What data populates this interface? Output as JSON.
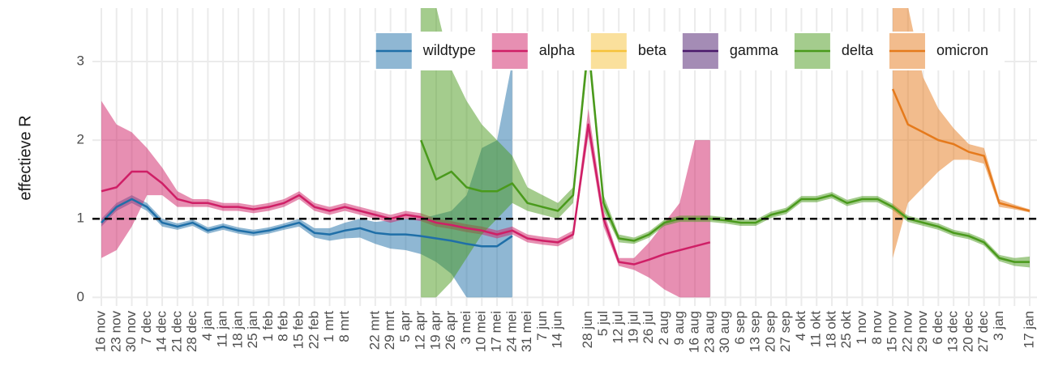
{
  "chart_data": {
    "type": "line-band",
    "y_label": "effectieve R",
    "categories": [
      "16 nov",
      "23 nov",
      "30 nov",
      "7 dec",
      "14 dec",
      "21 dec",
      "28 dec",
      "4 jan",
      "11 jan",
      "18 jan",
      "25 jan",
      "1 feb",
      "8 feb",
      "15 feb",
      "22 feb",
      "1 mrt",
      "8 mrt",
      null,
      "22 mrt",
      "29 mrt",
      "5 apr",
      "12 apr",
      "19 apr",
      "26 apr",
      "3 mei",
      "10 mei",
      "17 mei",
      "24 mei",
      "31 mei",
      "7 jun",
      "14 jun",
      null,
      "28 jun",
      "5 jul",
      "12 jul",
      "19 jul",
      "26 jul",
      "2 aug",
      "9 aug",
      "16 aug",
      "23 aug",
      "30 aug",
      "6 sep",
      "13 sep",
      "20 sep",
      "27 sep",
      "4 okt",
      "11 okt",
      "18 okt",
      "25 okt",
      "1 nov",
      "8 nov",
      "15 nov",
      "22 nov",
      "29 nov",
      "6 dec",
      "13 dec",
      "20 dec",
      "27 dec",
      "3 jan",
      null,
      "17 jan"
    ],
    "ylim": [
      -0.11,
      3.68
    ],
    "yticks": [
      0,
      1,
      2,
      3
    ],
    "grid": true,
    "reference_line": 1,
    "legend": "top-right",
    "series": [
      {
        "name": "wildtype",
        "color": "#1f6fa8",
        "values": [
          0.95,
          1.15,
          1.25,
          1.15,
          0.95,
          0.9,
          0.95,
          0.85,
          0.9,
          0.85,
          0.82,
          0.85,
          0.9,
          0.95,
          0.82,
          0.8,
          0.85,
          0.88,
          0.82,
          0.8,
          0.8,
          0.78,
          0.75,
          0.72,
          0.68,
          0.65,
          0.65,
          0.78,
          null,
          null,
          null,
          null,
          null,
          null,
          null,
          null,
          null,
          null,
          null,
          null,
          null,
          null,
          null,
          null,
          null,
          null,
          null,
          null,
          null,
          null,
          null,
          null,
          null,
          null,
          null,
          null,
          null,
          null,
          null,
          null,
          null,
          null
        ],
        "lower": [
          0.9,
          1.1,
          1.2,
          1.1,
          0.9,
          0.86,
          0.91,
          0.81,
          0.86,
          0.81,
          0.78,
          0.81,
          0.86,
          0.9,
          0.76,
          0.72,
          0.75,
          0.76,
          0.68,
          0.62,
          0.6,
          0.55,
          0.45,
          0.3,
          0,
          0,
          0,
          0,
          null,
          null,
          null,
          null,
          null,
          null,
          null,
          null,
          null,
          null,
          null,
          null,
          null,
          null,
          null,
          null,
          null,
          null,
          null,
          null,
          null,
          null,
          null,
          null,
          null,
          null,
          null,
          null,
          null,
          null,
          null,
          null,
          null,
          null
        ],
        "upper": [
          1.0,
          1.2,
          1.3,
          1.2,
          1.0,
          0.94,
          0.99,
          0.89,
          0.94,
          0.89,
          0.86,
          0.89,
          0.94,
          1.0,
          0.88,
          0.88,
          0.95,
          1.0,
          0.96,
          0.98,
          1.0,
          1.0,
          1.05,
          1.1,
          1.3,
          1.9,
          2.0,
          3.0,
          null,
          null,
          null,
          null,
          null,
          null,
          null,
          null,
          null,
          null,
          null,
          null,
          null,
          null,
          null,
          null,
          null,
          null,
          null,
          null,
          null,
          null,
          null,
          null,
          null,
          null,
          null,
          null,
          null,
          null,
          null,
          null,
          null,
          null
        ]
      },
      {
        "name": "alpha",
        "color": "#cf1f66",
        "values": [
          1.35,
          1.4,
          1.6,
          1.6,
          1.45,
          1.25,
          1.2,
          1.2,
          1.15,
          1.15,
          1.12,
          1.15,
          1.2,
          1.3,
          1.15,
          1.1,
          1.15,
          1.1,
          1.05,
          1.0,
          1.05,
          1.02,
          0.95,
          0.92,
          0.88,
          0.85,
          0.8,
          0.85,
          0.75,
          0.72,
          0.7,
          0.8,
          2.2,
          1.0,
          0.45,
          0.42,
          0.48,
          0.55,
          0.6,
          0.65,
          0.7,
          null,
          null,
          null,
          null,
          null,
          null,
          null,
          null,
          null,
          null,
          null,
          null,
          null,
          null,
          null,
          null,
          null,
          null,
          null,
          null,
          null
        ],
        "lower": [
          0.5,
          0.6,
          0.9,
          1.3,
          1.3,
          1.15,
          1.15,
          1.15,
          1.1,
          1.1,
          1.07,
          1.1,
          1.15,
          1.25,
          1.1,
          1.05,
          1.1,
          1.05,
          1.0,
          0.95,
          1.0,
          0.97,
          0.9,
          0.87,
          0.83,
          0.8,
          0.75,
          0.8,
          0.7,
          0.67,
          0.65,
          0.75,
          2.05,
          0.9,
          0.4,
          0.35,
          0.25,
          0.1,
          0,
          0,
          0,
          null,
          null,
          null,
          null,
          null,
          null,
          null,
          null,
          null,
          null,
          null,
          null,
          null,
          null,
          null,
          null,
          null,
          null,
          null,
          null,
          null
        ],
        "upper": [
          2.5,
          2.2,
          2.1,
          1.9,
          1.65,
          1.35,
          1.25,
          1.25,
          1.2,
          1.2,
          1.17,
          1.2,
          1.25,
          1.35,
          1.2,
          1.15,
          1.2,
          1.15,
          1.1,
          1.05,
          1.1,
          1.07,
          1.0,
          0.97,
          0.93,
          0.9,
          0.85,
          0.9,
          0.8,
          0.77,
          0.75,
          0.85,
          2.4,
          1.1,
          0.5,
          0.5,
          0.7,
          0.95,
          1.2,
          2.0,
          2.0,
          null,
          null,
          null,
          null,
          null,
          null,
          null,
          null,
          null,
          null,
          null,
          null,
          null,
          null,
          null,
          null,
          null,
          null,
          null,
          null,
          null
        ]
      },
      {
        "name": "beta",
        "color": "#f5c23a"
      },
      {
        "name": "gamma",
        "color": "#4a1a6b"
      },
      {
        "name": "delta",
        "color": "#4a9a1c",
        "values": [
          null,
          null,
          null,
          null,
          null,
          null,
          null,
          null,
          null,
          null,
          null,
          null,
          null,
          null,
          null,
          null,
          null,
          null,
          null,
          null,
          null,
          2.0,
          1.5,
          1.6,
          1.4,
          1.35,
          1.35,
          1.45,
          1.2,
          1.15,
          1.1,
          1.3,
          3.2,
          1.2,
          0.75,
          0.72,
          0.8,
          0.95,
          1.0,
          1.0,
          1.0,
          0.98,
          0.95,
          0.95,
          1.05,
          1.1,
          1.25,
          1.25,
          1.3,
          1.2,
          1.25,
          1.25,
          1.15,
          1.0,
          0.95,
          0.9,
          0.82,
          0.78,
          0.7,
          0.5,
          0.45,
          0.45
        ],
        "lower": [
          null,
          null,
          null,
          null,
          null,
          null,
          null,
          null,
          null,
          null,
          null,
          null,
          null,
          null,
          null,
          null,
          null,
          null,
          null,
          null,
          null,
          0,
          0,
          0.2,
          0.5,
          0.8,
          1.0,
          1.2,
          1.1,
          1.05,
          1.0,
          1.2,
          3.1,
          1.1,
          0.7,
          0.68,
          0.76,
          0.91,
          0.96,
          0.96,
          0.96,
          0.94,
          0.91,
          0.91,
          1.01,
          1.06,
          1.21,
          1.21,
          1.26,
          1.16,
          1.21,
          1.21,
          1.11,
          0.96,
          0.91,
          0.86,
          0.78,
          0.74,
          0.66,
          0.46,
          0.4,
          0.38
        ],
        "upper": [
          null,
          null,
          null,
          null,
          null,
          null,
          null,
          null,
          null,
          null,
          null,
          null,
          null,
          null,
          null,
          null,
          null,
          null,
          null,
          null,
          null,
          3.7,
          3.7,
          2.9,
          2.5,
          2.2,
          2.0,
          1.8,
          1.4,
          1.3,
          1.2,
          1.4,
          3.4,
          1.3,
          0.8,
          0.76,
          0.84,
          0.99,
          1.04,
          1.04,
          1.04,
          1.02,
          0.99,
          0.99,
          1.09,
          1.14,
          1.29,
          1.29,
          1.34,
          1.24,
          1.29,
          1.29,
          1.19,
          1.04,
          0.99,
          0.94,
          0.86,
          0.82,
          0.74,
          0.54,
          0.5,
          0.52
        ]
      },
      {
        "name": "omicron",
        "color": "#e57a1c",
        "values": [
          null,
          null,
          null,
          null,
          null,
          null,
          null,
          null,
          null,
          null,
          null,
          null,
          null,
          null,
          null,
          null,
          null,
          null,
          null,
          null,
          null,
          null,
          null,
          null,
          null,
          null,
          null,
          null,
          null,
          null,
          null,
          null,
          null,
          null,
          null,
          null,
          null,
          null,
          null,
          null,
          null,
          null,
          null,
          null,
          null,
          null,
          null,
          null,
          null,
          null,
          null,
          null,
          2.65,
          2.2,
          2.1,
          2.0,
          1.95,
          1.85,
          1.8,
          1.2,
          1.15,
          1.1
        ],
        "lower": [
          null,
          null,
          null,
          null,
          null,
          null,
          null,
          null,
          null,
          null,
          null,
          null,
          null,
          null,
          null,
          null,
          null,
          null,
          null,
          null,
          null,
          null,
          null,
          null,
          null,
          null,
          null,
          null,
          null,
          null,
          null,
          null,
          null,
          null,
          null,
          null,
          null,
          null,
          null,
          null,
          null,
          null,
          null,
          null,
          null,
          null,
          null,
          null,
          null,
          null,
          null,
          null,
          0.5,
          1.2,
          1.4,
          1.6,
          1.75,
          1.75,
          1.7,
          1.15,
          1.12,
          1.08
        ],
        "upper": [
          null,
          null,
          null,
          null,
          null,
          null,
          null,
          null,
          null,
          null,
          null,
          null,
          null,
          null,
          null,
          null,
          null,
          null,
          null,
          null,
          null,
          null,
          null,
          null,
          null,
          null,
          null,
          null,
          null,
          null,
          null,
          null,
          null,
          null,
          null,
          null,
          null,
          null,
          null,
          null,
          null,
          null,
          null,
          null,
          null,
          null,
          null,
          null,
          null,
          null,
          null,
          null,
          3.7,
          3.7,
          2.8,
          2.4,
          2.15,
          1.95,
          1.9,
          1.25,
          1.18,
          1.12
        ]
      }
    ]
  }
}
